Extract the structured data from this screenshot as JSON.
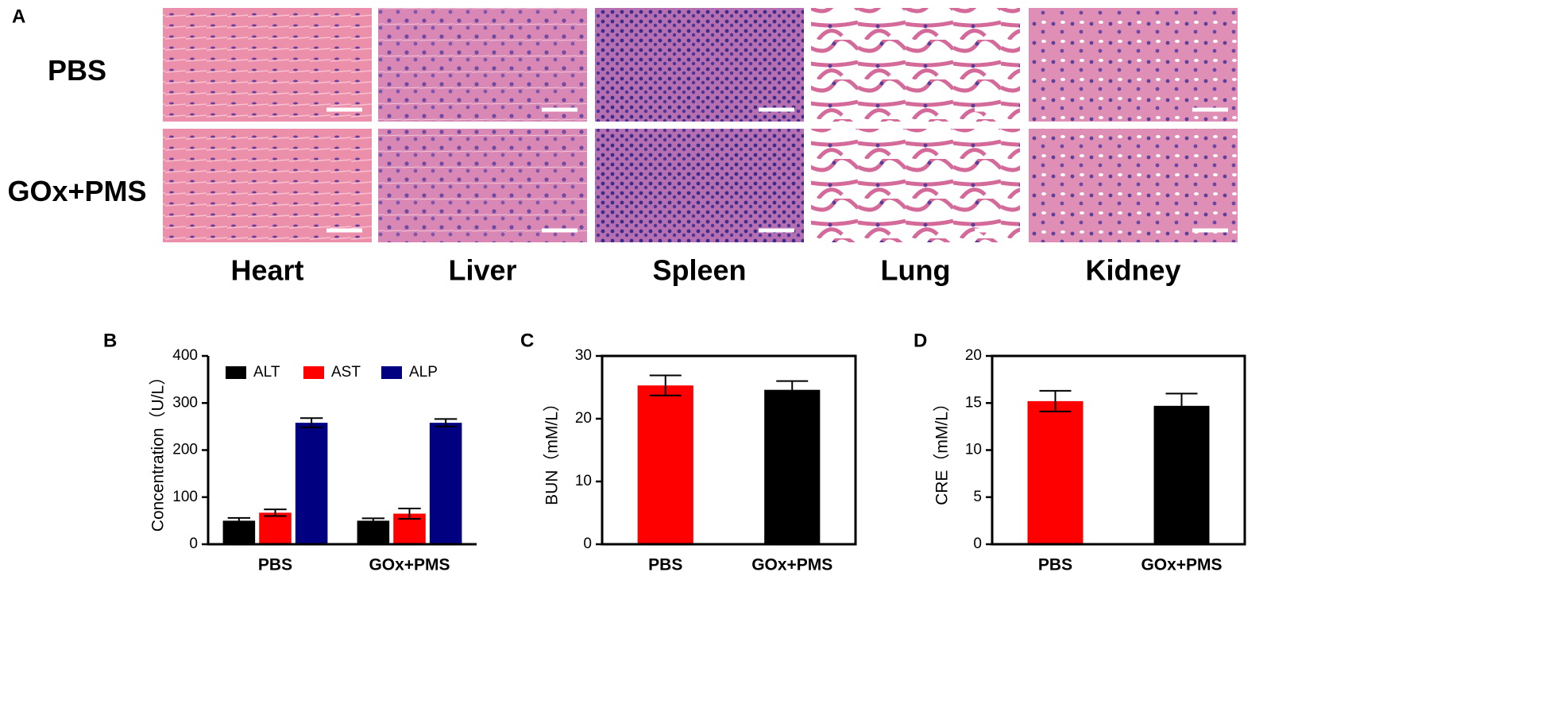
{
  "panel_a": {
    "panel_label": "A",
    "rows": [
      "PBS",
      "GOx+PMS"
    ],
    "columns": [
      "Heart",
      "Liver",
      "Spleen",
      "Lung",
      "Kidney"
    ]
  },
  "chart_data": [
    {
      "type": "bar",
      "panel": "B",
      "y_label": "Concentration（U/L）",
      "categories": [
        "PBS",
        "GOx+PMS"
      ],
      "series": [
        {
          "name": "ALT",
          "color": "#000000",
          "values": [
            50,
            50
          ],
          "errors": [
            6,
            5
          ]
        },
        {
          "name": "AST",
          "color": "#ff0000",
          "values": [
            67,
            65
          ],
          "errors": [
            7,
            11
          ]
        },
        {
          "name": "ALP",
          "color": "#000080",
          "values": [
            258,
            258
          ],
          "errors": [
            10,
            8
          ]
        }
      ],
      "ylim": [
        0,
        400
      ],
      "yticks": [
        0,
        100,
        200,
        300,
        400
      ],
      "legend": "upper left",
      "box": false
    },
    {
      "type": "bar",
      "panel": "C",
      "y_label": "BUN（mM/L）",
      "categories": [
        "PBS",
        "GOx+PMS"
      ],
      "values": [
        25.3,
        24.6
      ],
      "errors": [
        1.6,
        1.4
      ],
      "colors": [
        "#ff0000",
        "#000000"
      ],
      "ylim": [
        0,
        30
      ],
      "yticks": [
        0,
        10,
        20,
        30
      ],
      "box": true
    },
    {
      "type": "bar",
      "panel": "D",
      "y_label": "CRE（mM/L）",
      "categories": [
        "PBS",
        "GOx+PMS"
      ],
      "values": [
        15.2,
        14.7
      ],
      "errors": [
        1.1,
        1.3
      ],
      "colors": [
        "#ff0000",
        "#000000"
      ],
      "ylim": [
        0,
        20
      ],
      "yticks": [
        0,
        5,
        10,
        15,
        20
      ],
      "box": true
    }
  ]
}
